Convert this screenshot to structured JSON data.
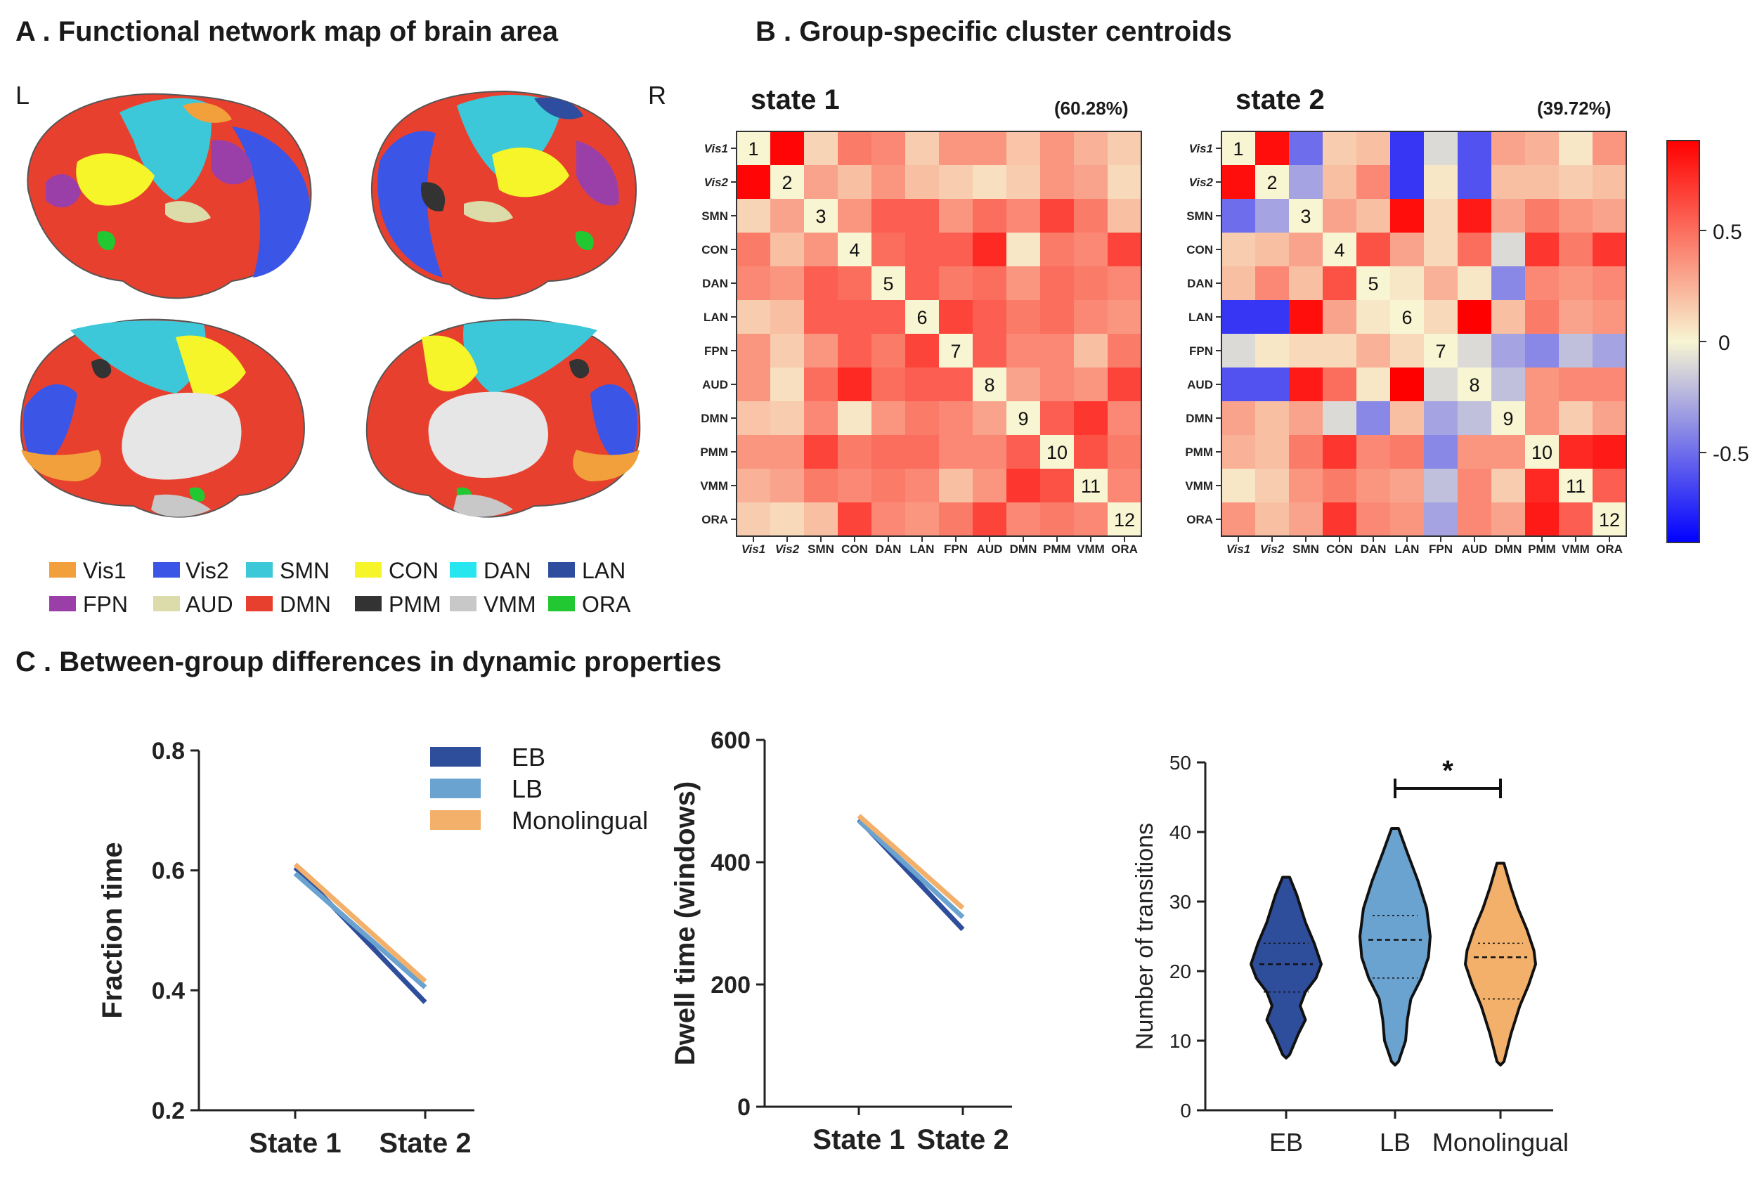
{
  "panels": {
    "a": {
      "title": "A .  Functional network map of brain area",
      "left_label": "L",
      "right_label": "R"
    },
    "b": {
      "title": "B . Group-specific cluster centroids"
    },
    "c": {
      "title": "C .  Between-group differences in dynamic properties"
    }
  },
  "network_legend": [
    {
      "label": "Vis1",
      "color": "#f2a03c"
    },
    {
      "label": "Vis2",
      "color": "#3b55e6"
    },
    {
      "label": "SMN",
      "color": "#3cc8d8"
    },
    {
      "label": "CON",
      "color": "#f5f52a"
    },
    {
      "label": "DAN",
      "color": "#27e6f0"
    },
    {
      "label": "LAN",
      "color": "#2f4d9e"
    },
    {
      "label": "FPN",
      "color": "#9b3fa8"
    },
    {
      "label": "AUD",
      "color": "#dcdcaa"
    },
    {
      "label": "DMN",
      "color": "#e8402e"
    },
    {
      "label": "PMM",
      "color": "#333333"
    },
    {
      "label": "VMM",
      "color": "#c8c8c8"
    },
    {
      "label": "ORA",
      "color": "#22c832"
    }
  ],
  "colorbar": {
    "ticks": [
      "0.5",
      "0",
      "-0.5"
    ],
    "range": [
      -0.9,
      0.9
    ]
  },
  "chart_data": [
    {
      "type": "heatmap",
      "title": "state 1",
      "percent": "(60.28%)",
      "labels": [
        "Vis1",
        "Vis2",
        "SMN",
        "CON",
        "DAN",
        "LAN",
        "FPN",
        "AUD",
        "DMN",
        "PMM",
        "VMM",
        "ORA"
      ],
      "diag_numbers": [
        "1",
        "2",
        "3",
        "4",
        "5",
        "6",
        "7",
        "8",
        "9",
        "10",
        "11",
        "12"
      ],
      "values": [
        [
          0.0,
          0.88,
          0.12,
          0.45,
          0.4,
          0.15,
          0.35,
          0.35,
          0.18,
          0.35,
          0.25,
          0.15
        ],
        [
          0.88,
          0.0,
          0.3,
          0.2,
          0.35,
          0.2,
          0.15,
          0.08,
          0.15,
          0.35,
          0.3,
          0.1
        ],
        [
          0.12,
          0.3,
          0.0,
          0.35,
          0.55,
          0.55,
          0.35,
          0.5,
          0.4,
          0.65,
          0.45,
          0.2
        ],
        [
          0.45,
          0.2,
          0.35,
          0.0,
          0.5,
          0.55,
          0.55,
          0.75,
          0.05,
          0.45,
          0.4,
          0.65
        ],
        [
          0.4,
          0.35,
          0.55,
          0.5,
          0.0,
          0.55,
          0.45,
          0.5,
          0.35,
          0.5,
          0.45,
          0.4
        ],
        [
          0.15,
          0.2,
          0.55,
          0.55,
          0.55,
          0.0,
          0.65,
          0.55,
          0.45,
          0.5,
          0.4,
          0.35
        ],
        [
          0.35,
          0.15,
          0.35,
          0.55,
          0.45,
          0.65,
          0.0,
          0.55,
          0.4,
          0.4,
          0.2,
          0.45
        ],
        [
          0.35,
          0.08,
          0.5,
          0.75,
          0.5,
          0.55,
          0.55,
          0.0,
          0.3,
          0.4,
          0.35,
          0.65
        ],
        [
          0.18,
          0.15,
          0.4,
          0.05,
          0.35,
          0.45,
          0.4,
          0.3,
          0.0,
          0.55,
          0.7,
          0.4
        ],
        [
          0.35,
          0.35,
          0.65,
          0.45,
          0.5,
          0.5,
          0.4,
          0.4,
          0.55,
          0.0,
          0.6,
          0.45
        ],
        [
          0.25,
          0.3,
          0.45,
          0.4,
          0.45,
          0.4,
          0.2,
          0.35,
          0.7,
          0.6,
          0.0,
          0.4
        ],
        [
          0.15,
          0.1,
          0.2,
          0.65,
          0.4,
          0.35,
          0.45,
          0.65,
          0.4,
          0.45,
          0.4,
          0.0
        ]
      ]
    },
    {
      "type": "heatmap",
      "title": "state 2",
      "percent": "(39.72%)",
      "labels": [
        "Vis1",
        "Vis2",
        "SMN",
        "CON",
        "DAN",
        "LAN",
        "FPN",
        "AUD",
        "DMN",
        "PMM",
        "VMM",
        "ORA"
      ],
      "diag_numbers": [
        "1",
        "2",
        "3",
        "4",
        "5",
        "6",
        "7",
        "8",
        "9",
        "10",
        "11",
        "12"
      ],
      "values": [
        [
          0.0,
          0.85,
          -0.5,
          0.15,
          0.2,
          -0.7,
          -0.1,
          -0.6,
          0.3,
          0.25,
          0.05,
          0.35
        ],
        [
          0.85,
          0.0,
          -0.3,
          0.2,
          0.4,
          -0.7,
          0.05,
          -0.6,
          0.2,
          0.2,
          0.15,
          0.2
        ],
        [
          -0.5,
          -0.3,
          0.0,
          0.3,
          0.2,
          0.85,
          0.1,
          0.8,
          0.3,
          0.45,
          0.35,
          0.3
        ],
        [
          0.15,
          0.2,
          0.3,
          0.0,
          0.6,
          0.3,
          0.1,
          0.5,
          -0.1,
          0.7,
          0.45,
          0.7
        ],
        [
          0.2,
          0.4,
          0.2,
          0.6,
          0.0,
          0.05,
          0.25,
          0.05,
          -0.4,
          0.4,
          0.35,
          0.4
        ],
        [
          -0.7,
          -0.7,
          0.85,
          0.3,
          0.05,
          0.0,
          0.1,
          0.9,
          0.2,
          0.45,
          0.3,
          0.35
        ],
        [
          -0.1,
          0.05,
          0.1,
          0.1,
          0.25,
          0.1,
          0.0,
          -0.1,
          -0.3,
          -0.4,
          -0.2,
          -0.3
        ],
        [
          -0.6,
          -0.6,
          0.8,
          0.5,
          0.05,
          0.9,
          -0.1,
          0.0,
          -0.2,
          0.35,
          0.4,
          0.4
        ],
        [
          0.3,
          0.2,
          0.3,
          -0.1,
          -0.4,
          0.2,
          -0.3,
          -0.2,
          0.0,
          0.35,
          0.15,
          0.3
        ],
        [
          0.25,
          0.2,
          0.45,
          0.7,
          0.4,
          0.45,
          -0.4,
          0.35,
          0.35,
          0.0,
          0.75,
          0.8
        ],
        [
          0.05,
          0.15,
          0.35,
          0.45,
          0.35,
          0.3,
          -0.2,
          0.4,
          0.15,
          0.75,
          0.0,
          0.55
        ],
        [
          0.35,
          0.2,
          0.3,
          0.7,
          0.4,
          0.35,
          -0.3,
          0.4,
          0.3,
          0.8,
          0.55,
          0.0
        ]
      ]
    },
    {
      "type": "line",
      "title": "",
      "xlabel": "",
      "ylabel": "Fraction time",
      "categories": [
        "State 1",
        "State 2"
      ],
      "ylim": [
        0.2,
        0.8
      ],
      "yticks": [
        "0.2",
        "0.4",
        "0.6",
        "0.8"
      ],
      "series": [
        {
          "name": "EB",
          "values": [
            0.605,
            0.38
          ],
          "color": "#2e4e9c"
        },
        {
          "name": "LB",
          "values": [
            0.595,
            0.405
          ],
          "color": "#6aa2d0"
        },
        {
          "name": "Monolingual",
          "values": [
            0.61,
            0.415
          ],
          "color": "#f2b06a"
        }
      ]
    },
    {
      "type": "line",
      "title": "",
      "xlabel": "",
      "ylabel": "Dwell time (windows)",
      "categories": [
        "State 1",
        "State 2"
      ],
      "ylim": [
        0,
        600
      ],
      "yticks": [
        "0",
        "200",
        "400",
        "600"
      ],
      "series": [
        {
          "name": "EB",
          "values": [
            470,
            290
          ],
          "color": "#2e4e9c"
        },
        {
          "name": "LB",
          "values": [
            468,
            310
          ],
          "color": "#6aa2d0"
        },
        {
          "name": "Monolingual",
          "values": [
            476,
            325
          ],
          "color": "#f2b06a"
        }
      ]
    },
    {
      "type": "violin",
      "title": "",
      "xlabel": "",
      "ylabel": "Number of transitions",
      "categories": [
        "EB",
        "LB",
        "Monolingual"
      ],
      "ylim": [
        0,
        50
      ],
      "yticks": [
        "0",
        "10",
        "20",
        "30",
        "40",
        "50"
      ],
      "series": [
        {
          "name": "EB",
          "min": 7.5,
          "max": 33.5,
          "q1": 17,
          "median": 21,
          "q3": 24,
          "color": "#2e4e9c"
        },
        {
          "name": "LB",
          "min": 6.5,
          "max": 40.5,
          "q1": 19,
          "median": 24.5,
          "q3": 28,
          "color": "#6aa2d0"
        },
        {
          "name": "Monolingual",
          "min": 6.5,
          "max": 35.5,
          "q1": 16,
          "median": 22,
          "q3": 24,
          "color": "#f2b06a"
        }
      ],
      "significance": {
        "between": [
          "LB",
          "Monolingual"
        ],
        "label": "*"
      }
    }
  ]
}
